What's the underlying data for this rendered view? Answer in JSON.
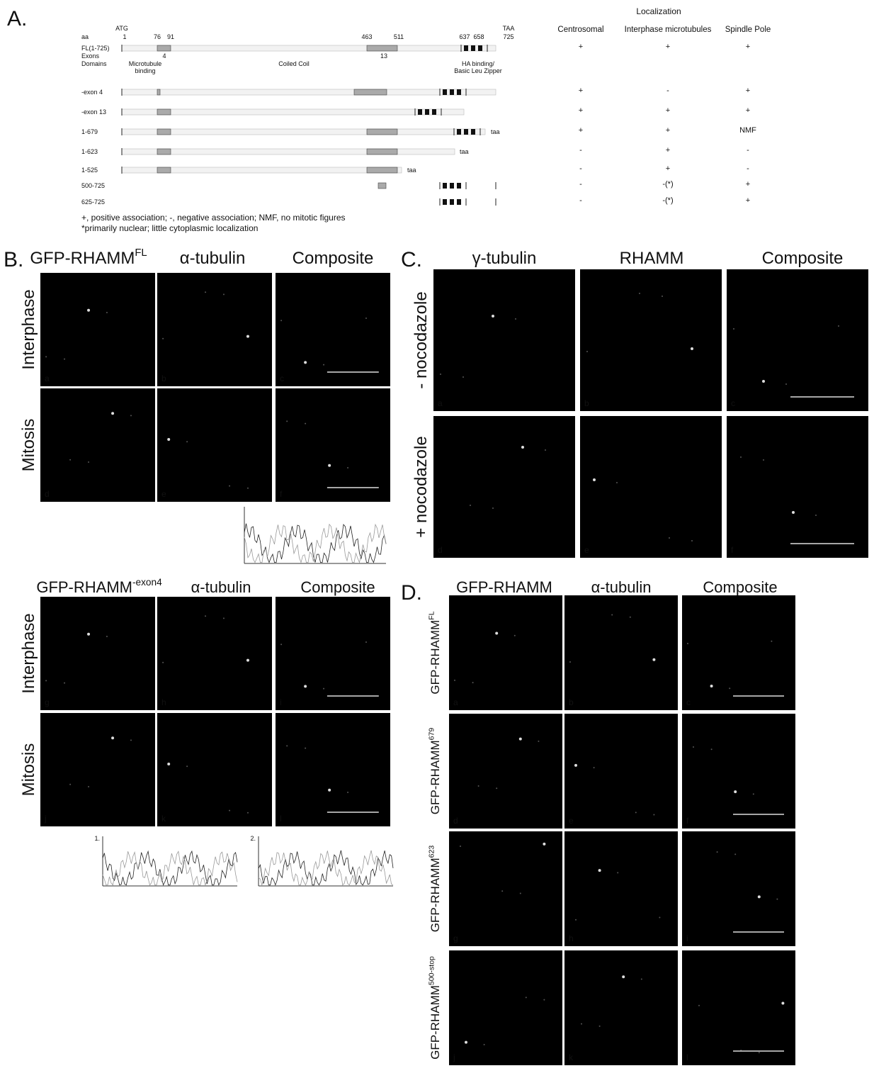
{
  "panel_a": {
    "label": "A.",
    "localization_header": "Localization",
    "columns": [
      "Centrosomal",
      "Interphase microtubules",
      "Spindle Pole"
    ],
    "start_codon": "ATG",
    "stop_codon": "TAA",
    "aa_label": "aa",
    "positions": [
      "1",
      "76",
      "91",
      "463",
      "511",
      "637",
      "658",
      "725"
    ],
    "exons_label": "Exons",
    "exons": [
      "4",
      "13"
    ],
    "domains_label": "Domains",
    "domains": [
      [
        "Microtubule",
        "binding"
      ],
      [
        "Coiled Coil"
      ],
      [
        "HA binding/",
        "Basic Leu Zipper"
      ]
    ],
    "constructs": [
      {
        "name": "FL(1-725)",
        "localization": [
          "+",
          "+",
          "+"
        ]
      },
      {
        "name": "-exon 4",
        "localization": [
          "+",
          "-",
          "+"
        ]
      },
      {
        "name": "-exon 13",
        "localization": [
          "+",
          "+",
          "+"
        ]
      },
      {
        "name": "1-679",
        "taa": "taa",
        "localization": [
          "+",
          "+",
          "NMF"
        ]
      },
      {
        "name": "1-623",
        "taa": "taa",
        "localization": [
          "-",
          "+",
          "-"
        ]
      },
      {
        "name": "1-525",
        "taa": "taa",
        "localization": [
          "-",
          "+",
          "-"
        ]
      },
      {
        "name": "500-725",
        "localization": [
          "-",
          "-(*)",
          "+"
        ]
      },
      {
        "name": "625-725",
        "localization": [
          "-",
          "-(*)",
          "+"
        ]
      }
    ],
    "footnotes": [
      "+, positive association; -, negative association; NMF, no mitotic figures",
      "*primarily nuclear; little cytoplasmic localization"
    ]
  },
  "panel_b": {
    "label": "B.",
    "columns": [
      {
        "text": "GFP-RHAMM",
        "sup": "FL"
      },
      {
        "text": "α-tubulin"
      },
      {
        "text": "Composite"
      }
    ],
    "rows": [
      "Interphase",
      "Mitosis"
    ],
    "letters": [
      "a",
      "b",
      "c",
      "d",
      "e",
      "f"
    ]
  },
  "panel_b2": {
    "columns": [
      {
        "text": "GFP-RHAMM",
        "sup": "-exon4"
      },
      {
        "text": "α-tubulin"
      },
      {
        "text": "Composite"
      }
    ],
    "rows": [
      "Interphase",
      "Mitosis"
    ],
    "letters": [
      "g",
      "h",
      "i",
      "j",
      "k",
      "l"
    ],
    "plot_labels": [
      "1.",
      "2."
    ]
  },
  "panel_c": {
    "label": "C.",
    "columns": [
      {
        "text": "γ-tubulin"
      },
      {
        "text": "RHAMM"
      },
      {
        "text": "Composite"
      }
    ],
    "rows": [
      "- nocodazole",
      "+ nocodazole"
    ],
    "letters": [
      "a",
      "b",
      "c",
      "d",
      "e",
      "f"
    ]
  },
  "panel_d": {
    "label": "D.",
    "columns": [
      {
        "text": "GFP-RHAMM"
      },
      {
        "text": "α-tubulin"
      },
      {
        "text": "Composite"
      }
    ],
    "rows": [
      {
        "text": "GFP-RHAMM",
        "sup": "FL"
      },
      {
        "text": "GFP-RHAMM",
        "sup": "679"
      },
      {
        "text": "GFP-RHAMM",
        "sup": "623"
      },
      {
        "text": "GFP-RHAMM",
        "sup": "500-stop"
      }
    ],
    "letters": [
      "a",
      "b",
      "c",
      "d",
      "e",
      "f",
      "g",
      "h",
      "i",
      "j",
      "k",
      "l"
    ]
  }
}
